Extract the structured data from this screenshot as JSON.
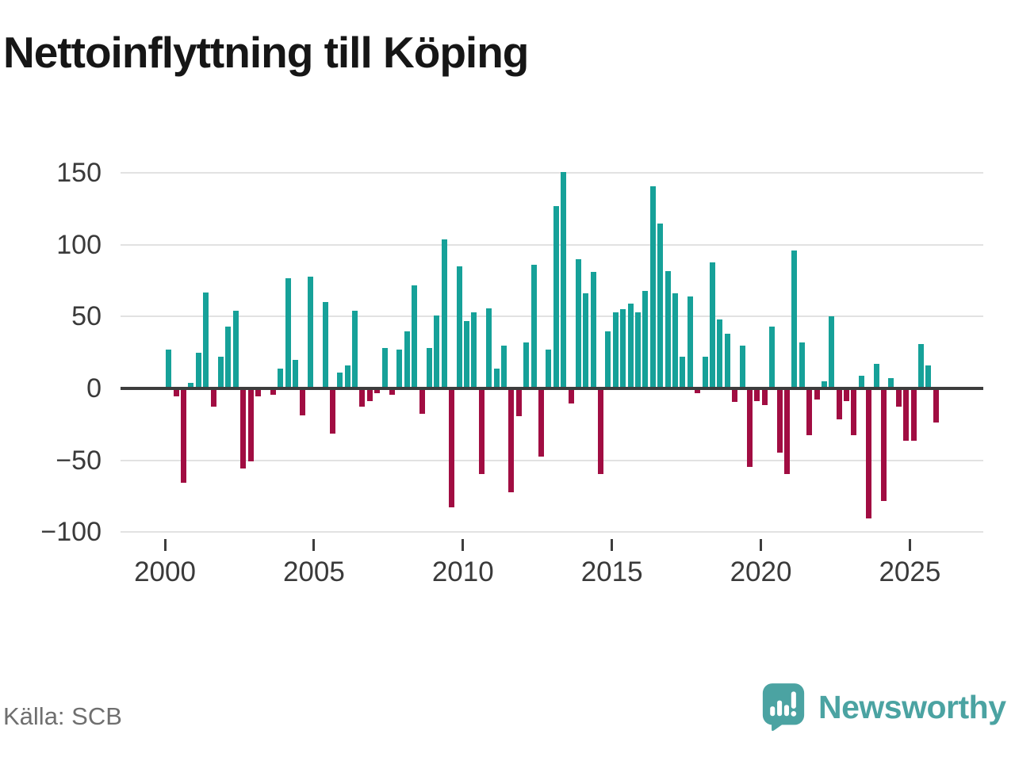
{
  "page": {
    "title": "Nettoinflyttning till Köping",
    "source": "Källa: SCB",
    "brand": "Newsworthy"
  },
  "colors": {
    "positive": "#16a199",
    "negative": "#a10d42",
    "grid": "#e2e2e2",
    "axis": "#3d3d3d",
    "tick_text": "#3a3a3a",
    "title_text": "#161616",
    "source_text": "#6f6f6f",
    "brand_teal": "#4ba3a2"
  },
  "chart_data": {
    "type": "bar",
    "title": "Nettoinflyttning till Köping",
    "xlabel": "",
    "ylabel": "",
    "grid": true,
    "legend": "none",
    "ylim": [
      -100,
      167
    ],
    "y_ticks": [
      "150",
      "100",
      "50",
      "0",
      "−50",
      "−100"
    ],
    "y_tick_values": [
      150,
      100,
      50,
      0,
      -50,
      -100
    ],
    "x_ticks": [
      "2000",
      "2005",
      "2010",
      "2015",
      "2020",
      "2025"
    ],
    "quarters": [
      "2000Q1",
      "2000Q2",
      "2000Q3",
      "2000Q4",
      "2001Q1",
      "2001Q2",
      "2001Q3",
      "2001Q4",
      "2002Q1",
      "2002Q2",
      "2002Q3",
      "2002Q4",
      "2003Q1",
      "2003Q2",
      "2003Q3",
      "2003Q4",
      "2004Q1",
      "2004Q2",
      "2004Q3",
      "2004Q4",
      "2005Q1",
      "2005Q2",
      "2005Q3",
      "2005Q4",
      "2006Q1",
      "2006Q2",
      "2006Q3",
      "2006Q4",
      "2007Q1",
      "2007Q2",
      "2007Q3",
      "2007Q4",
      "2008Q1",
      "2008Q2",
      "2008Q3",
      "2008Q4",
      "2009Q1",
      "2009Q2",
      "2009Q3",
      "2009Q4",
      "2010Q1",
      "2010Q2",
      "2010Q3",
      "2010Q4",
      "2011Q1",
      "2011Q2",
      "2011Q3",
      "2011Q4",
      "2012Q1",
      "2012Q2",
      "2012Q3",
      "2012Q4",
      "2013Q1",
      "2013Q2",
      "2013Q3",
      "2013Q4",
      "2014Q1",
      "2014Q2",
      "2014Q3",
      "2014Q4",
      "2015Q1",
      "2015Q2",
      "2015Q3",
      "2015Q4",
      "2016Q1",
      "2016Q2",
      "2016Q3",
      "2016Q4",
      "2017Q1",
      "2017Q2",
      "2017Q3",
      "2017Q4",
      "2018Q1",
      "2018Q2",
      "2018Q3",
      "2018Q4",
      "2019Q1",
      "2019Q2",
      "2019Q3",
      "2019Q4",
      "2020Q1",
      "2020Q2",
      "2020Q3",
      "2020Q4",
      "2021Q1",
      "2021Q2",
      "2021Q3",
      "2021Q4",
      "2022Q1",
      "2022Q2",
      "2022Q3",
      "2022Q4",
      "2023Q1",
      "2023Q2",
      "2023Q3",
      "2023Q4",
      "2024Q1",
      "2024Q2",
      "2024Q3",
      "2024Q4",
      "2025Q1",
      "2025Q2",
      "2025Q3",
      "2025Q4"
    ],
    "values": [
      27,
      -5,
      -65,
      4,
      25,
      67,
      -12,
      22,
      43,
      54,
      -55,
      -50,
      -5,
      0,
      -4,
      14,
      77,
      20,
      -18,
      78,
      0,
      60,
      -31,
      11,
      16,
      54,
      -12,
      -8,
      -3,
      28,
      -4,
      27,
      40,
      72,
      -17,
      28,
      51,
      104,
      -82,
      85,
      47,
      53,
      -59,
      56,
      14,
      30,
      -72,
      -19,
      32,
      86,
      -47,
      27,
      127,
      151,
      -10,
      90,
      66,
      81,
      -59,
      40,
      53,
      55,
      59,
      53,
      68,
      141,
      115,
      82,
      66,
      22,
      64,
      -3,
      22,
      88,
      48,
      38,
      -9,
      30,
      -54,
      -8,
      -11,
      43,
      -44,
      -59,
      96,
      32,
      -32,
      -7,
      5,
      50,
      -21,
      -8,
      -32,
      9,
      -90,
      17,
      -78,
      7,
      -12,
      -36,
      -36,
      31,
      16,
      -23
    ]
  }
}
